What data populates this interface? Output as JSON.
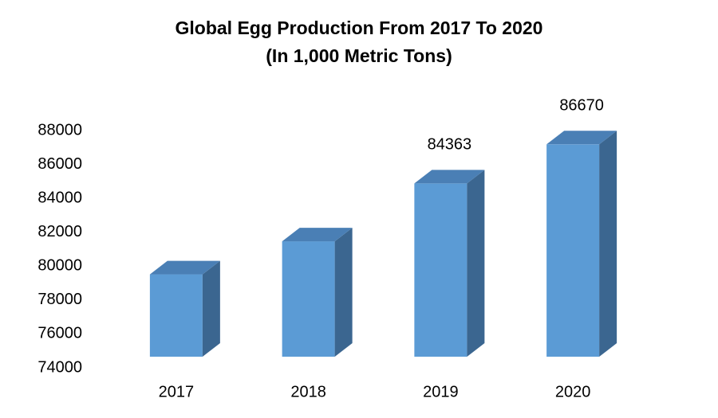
{
  "chart_data": {
    "type": "bar3d",
    "title": "Global Egg Production From 2017 To 2020",
    "subtitle": "(In 1,000 Metric Tons)",
    "categories": [
      "2017",
      "2018",
      "2019",
      "2020"
    ],
    "values": [
      79000,
      80950,
      84363,
      86670
    ],
    "value_labels": [
      null,
      null,
      "84363",
      "86670"
    ],
    "color": "#5b9bd5",
    "ylim": [
      74000,
      88000
    ],
    "yticks": [
      74000,
      76000,
      78000,
      80000,
      82000,
      84000,
      86000,
      88000
    ],
    "grid": false
  }
}
